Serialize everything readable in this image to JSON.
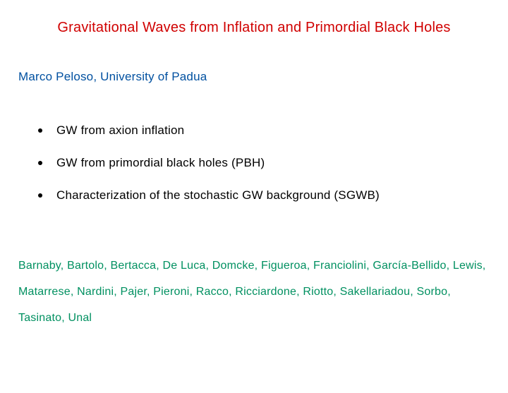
{
  "title": "Gravitational Waves from Inflation and Primordial Black Holes",
  "author": "Marco Peloso, University of Padua",
  "bullets": [
    "GW from axion inflation",
    "GW from primordial black holes (PBH)",
    "Characterization of the stochastic GW background (SGWB)"
  ],
  "collaborators": "Barnaby, Bartolo, Bertacca, De Luca, Domcke, Figueroa, Franciolini, García-Bellido, Lewis, Matarrese, Nardini, Pajer, Pieroni, Racco, Ricciardone, Riotto, Sakellariadou, Sorbo, Tasinato, Unal",
  "colors": {
    "title": "#d00000",
    "author": "#0050a0",
    "bullet_text": "#000000",
    "collaborators": "#009060",
    "background": "#ffffff"
  },
  "typography": {
    "title_fontsize": 20,
    "author_fontsize": 17,
    "bullet_fontsize": 17,
    "collab_fontsize": 16,
    "font_family": "Trebuchet MS"
  }
}
